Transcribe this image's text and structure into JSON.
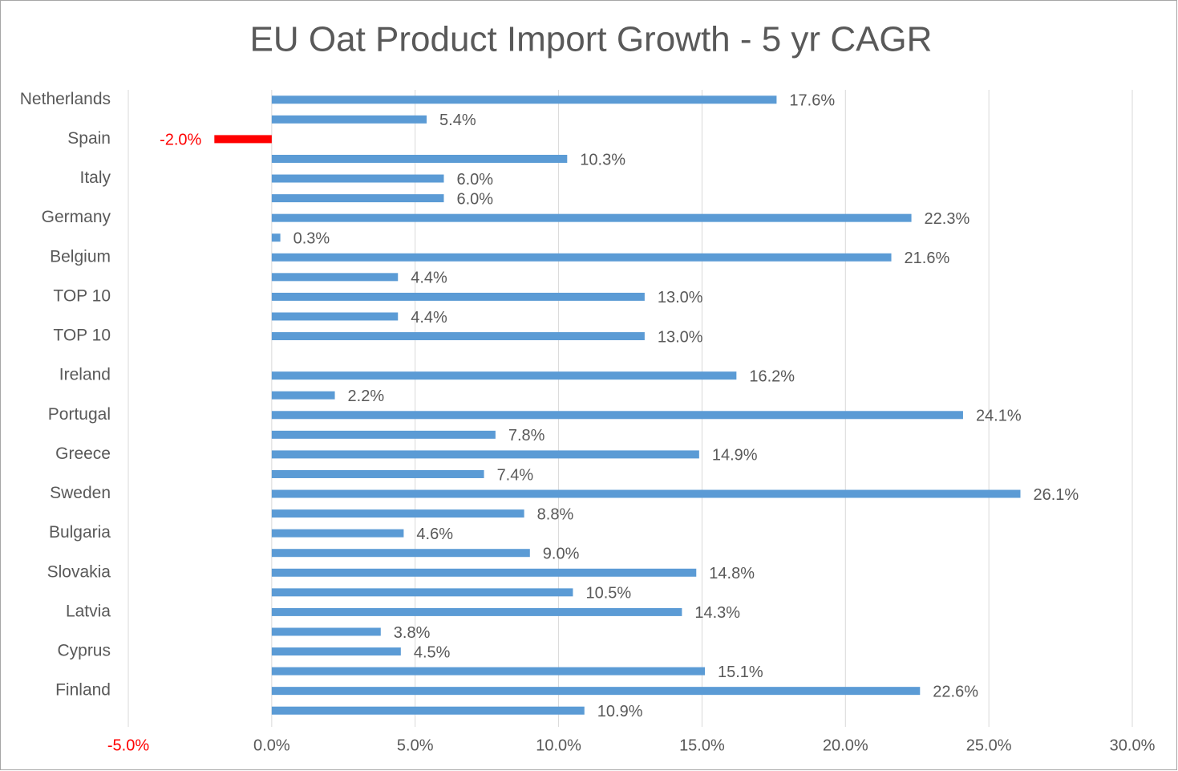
{
  "chart_data": {
    "type": "bar",
    "orientation": "horizontal",
    "title": "EU Oat Product Import Growth - 5 yr CAGR",
    "categories": [
      "Netherlands",
      null,
      "Spain",
      null,
      "Italy",
      null,
      "Germany",
      null,
      "Belgium",
      null,
      "TOP 10",
      null,
      "TOP 10",
      null,
      "Ireland",
      null,
      "Portugal",
      null,
      "Greece",
      null,
      "Sweden",
      null,
      "Bulgaria",
      null,
      "Slovakia",
      null,
      "Latvia",
      null,
      "Cyprus",
      null,
      "Finland",
      null
    ],
    "values": [
      17.6,
      5.4,
      -2.0,
      10.3,
      6.0,
      6.0,
      22.3,
      0.3,
      21.6,
      4.4,
      13.0,
      4.4,
      13.0,
      null,
      16.2,
      2.2,
      24.1,
      7.8,
      14.9,
      7.4,
      26.1,
      8.8,
      4.6,
      9.0,
      14.8,
      10.5,
      14.3,
      3.8,
      4.5,
      15.1,
      22.6,
      10.9
    ],
    "value_labels": [
      "17.6%",
      "5.4%",
      "-2.0%",
      "10.3%",
      "6.0%",
      "6.0%",
      "22.3%",
      "0.3%",
      "21.6%",
      "4.4%",
      "13.0%",
      "4.4%",
      "13.0%",
      null,
      "16.2%",
      "2.2%",
      "24.1%",
      "7.8%",
      "14.9%",
      "7.4%",
      "26.1%",
      "8.8%",
      "4.6%",
      "9.0%",
      "14.8%",
      "10.5%",
      "14.3%",
      "3.8%",
      "4.5%",
      "15.1%",
      "22.6%",
      "10.9%"
    ],
    "color": "#5b9bd5",
    "negative_color": "#ff0000",
    "xlim": [
      -5,
      30
    ],
    "xticks": [
      {
        "value": -5,
        "label": "-5.0%"
      },
      {
        "value": 0,
        "label": "0.0%"
      },
      {
        "value": 5,
        "label": "5.0%"
      },
      {
        "value": 10,
        "label": "10.0%"
      },
      {
        "value": 15,
        "label": "15.0%"
      },
      {
        "value": 20,
        "label": "20.0%"
      },
      {
        "value": 25,
        "label": "25.0%"
      },
      {
        "value": 30,
        "label": "30.0%"
      }
    ],
    "grid": true
  }
}
